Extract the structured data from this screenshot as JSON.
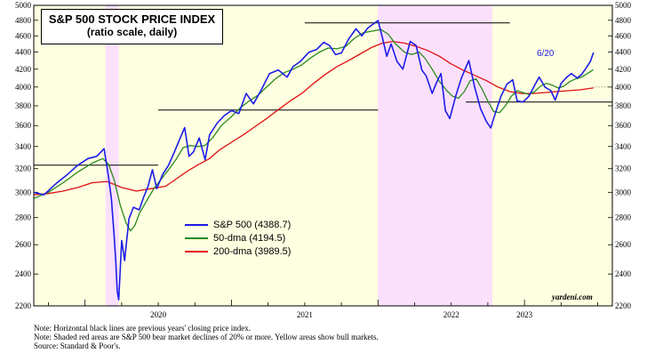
{
  "chart_data": {
    "type": "line",
    "title": "S&P 500 STOCK PRICE INDEX",
    "subtitle": "(ratio scale, daily)",
    "y_scale": "log",
    "ylim": [
      2200,
      5000
    ],
    "y_ticks": [
      2200,
      2400,
      2600,
      2800,
      3000,
      3200,
      3400,
      3600,
      3800,
      4000,
      4200,
      4400,
      4600,
      4800,
      5000
    ],
    "x_range": [
      2019.65,
      2023.6
    ],
    "x_tick_labels": [
      "2020",
      "2021",
      "2022",
      "2023"
    ],
    "x_tick_positions": [
      2020.0,
      2021.0,
      2022.0,
      2023.0
    ],
    "bear_markets": [
      [
        2020.14,
        2020.23
      ],
      [
        2022.0,
        2022.78
      ]
    ],
    "bull_markets": [
      [
        2019.65,
        2020.14
      ],
      [
        2020.23,
        2022.0
      ],
      [
        2022.78,
        2023.6
      ]
    ],
    "prior_year_closes": [
      {
        "value": 3231,
        "x_start": 2019.65,
        "x_end": 2020.5
      },
      {
        "value": 3756,
        "x_start": 2020.5,
        "x_end": 2022.0
      },
      {
        "value": 4766,
        "x_start": 2021.5,
        "x_end": 2022.9
      },
      {
        "value": 3839,
        "x_start": 2022.6,
        "x_end": 2023.6
      }
    ],
    "end_label": "6/20",
    "legend": [
      {
        "name": "S&P 500 (4388.7)",
        "color": "#1c1ce8"
      },
      {
        "name": "50-dma (4194.5)",
        "color": "#2a8a1e"
      },
      {
        "name": "200-dma (3989.5)",
        "color": "#e01010"
      }
    ],
    "reference_level": 4000,
    "series": [
      {
        "name": "S&P 500",
        "color": "#1c1ce8",
        "points": [
          [
            2019.65,
            3000
          ],
          [
            2019.72,
            2980
          ],
          [
            2019.8,
            3070
          ],
          [
            2019.88,
            3150
          ],
          [
            2019.95,
            3230
          ],
          [
            2020.02,
            3290
          ],
          [
            2020.08,
            3310
          ],
          [
            2020.13,
            3380
          ],
          [
            2020.16,
            3130
          ],
          [
            2020.18,
            2950
          ],
          [
            2020.2,
            2650
          ],
          [
            2020.21,
            2480
          ],
          [
            2020.22,
            2290
          ],
          [
            2020.23,
            2237
          ],
          [
            2020.25,
            2630
          ],
          [
            2020.27,
            2490
          ],
          [
            2020.3,
            2790
          ],
          [
            2020.33,
            2880
          ],
          [
            2020.37,
            2860
          ],
          [
            2020.4,
            2960
          ],
          [
            2020.43,
            3050
          ],
          [
            2020.46,
            3190
          ],
          [
            2020.49,
            3030
          ],
          [
            2020.53,
            3150
          ],
          [
            2020.57,
            3230
          ],
          [
            2020.61,
            3350
          ],
          [
            2020.65,
            3480
          ],
          [
            2020.68,
            3580
          ],
          [
            2020.71,
            3310
          ],
          [
            2020.74,
            3350
          ],
          [
            2020.78,
            3480
          ],
          [
            2020.82,
            3280
          ],
          [
            2020.85,
            3510
          ],
          [
            2020.9,
            3620
          ],
          [
            2020.95,
            3700
          ],
          [
            2021.0,
            3750
          ],
          [
            2021.05,
            3720
          ],
          [
            2021.1,
            3930
          ],
          [
            2021.15,
            3820
          ],
          [
            2021.2,
            3960
          ],
          [
            2021.26,
            4150
          ],
          [
            2021.32,
            4190
          ],
          [
            2021.38,
            4110
          ],
          [
            2021.42,
            4230
          ],
          [
            2021.47,
            4290
          ],
          [
            2021.53,
            4400
          ],
          [
            2021.58,
            4430
          ],
          [
            2021.63,
            4520
          ],
          [
            2021.67,
            4480
          ],
          [
            2021.71,
            4370
          ],
          [
            2021.75,
            4390
          ],
          [
            2021.8,
            4560
          ],
          [
            2021.85,
            4690
          ],
          [
            2021.89,
            4600
          ],
          [
            2021.93,
            4700
          ],
          [
            2022.0,
            4796
          ],
          [
            2022.03,
            4580
          ],
          [
            2022.06,
            4350
          ],
          [
            2022.09,
            4500
          ],
          [
            2022.13,
            4290
          ],
          [
            2022.17,
            4200
          ],
          [
            2022.22,
            4530
          ],
          [
            2022.26,
            4480
          ],
          [
            2022.3,
            4190
          ],
          [
            2022.33,
            4120
          ],
          [
            2022.37,
            3930
          ],
          [
            2022.4,
            4050
          ],
          [
            2022.43,
            4150
          ],
          [
            2022.46,
            3750
          ],
          [
            2022.49,
            3670
          ],
          [
            2022.53,
            3900
          ],
          [
            2022.57,
            4100
          ],
          [
            2022.62,
            4300
          ],
          [
            2022.66,
            4000
          ],
          [
            2022.7,
            3770
          ],
          [
            2022.74,
            3640
          ],
          [
            2022.77,
            3577
          ],
          [
            2022.8,
            3720
          ],
          [
            2022.84,
            3900
          ],
          [
            2022.88,
            4030
          ],
          [
            2022.92,
            4080
          ],
          [
            2022.95,
            3850
          ],
          [
            2022.99,
            3840
          ],
          [
            2023.03,
            3900
          ],
          [
            2023.07,
            4020
          ],
          [
            2023.1,
            4110
          ],
          [
            2023.14,
            4000
          ],
          [
            2023.18,
            3960
          ],
          [
            2023.21,
            3860
          ],
          [
            2023.25,
            4040
          ],
          [
            2023.29,
            4110
          ],
          [
            2023.32,
            4150
          ],
          [
            2023.36,
            4100
          ],
          [
            2023.39,
            4140
          ],
          [
            2023.42,
            4210
          ],
          [
            2023.45,
            4290
          ],
          [
            2023.47,
            4390
          ],
          [
            2023.469,
            4388.7
          ]
        ]
      },
      {
        "name": "50-dma",
        "color": "#2a8a1e",
        "points": [
          [
            2019.65,
            2950
          ],
          [
            2019.75,
            3000
          ],
          [
            2019.85,
            3080
          ],
          [
            2019.95,
            3170
          ],
          [
            2020.05,
            3250
          ],
          [
            2020.12,
            3290
          ],
          [
            2020.16,
            3240
          ],
          [
            2020.2,
            3100
          ],
          [
            2020.24,
            2900
          ],
          [
            2020.28,
            2760
          ],
          [
            2020.31,
            2700
          ],
          [
            2020.34,
            2740
          ],
          [
            2020.37,
            2830
          ],
          [
            2020.42,
            2930
          ],
          [
            2020.47,
            3030
          ],
          [
            2020.52,
            3110
          ],
          [
            2020.57,
            3190
          ],
          [
            2020.62,
            3280
          ],
          [
            2020.67,
            3390
          ],
          [
            2020.72,
            3410
          ],
          [
            2020.77,
            3400
          ],
          [
            2020.82,
            3410
          ],
          [
            2020.87,
            3480
          ],
          [
            2020.93,
            3600
          ],
          [
            2021.0,
            3690
          ],
          [
            2021.06,
            3780
          ],
          [
            2021.12,
            3850
          ],
          [
            2021.18,
            3910
          ],
          [
            2021.24,
            4000
          ],
          [
            2021.3,
            4090
          ],
          [
            2021.36,
            4160
          ],
          [
            2021.42,
            4200
          ],
          [
            2021.48,
            4250
          ],
          [
            2021.54,
            4330
          ],
          [
            2021.6,
            4400
          ],
          [
            2021.66,
            4450
          ],
          [
            2021.72,
            4440
          ],
          [
            2021.78,
            4470
          ],
          [
            2021.84,
            4570
          ],
          [
            2021.9,
            4640
          ],
          [
            2021.96,
            4660
          ],
          [
            2022.02,
            4680
          ],
          [
            2022.07,
            4620
          ],
          [
            2022.12,
            4500
          ],
          [
            2022.18,
            4400
          ],
          [
            2022.23,
            4370
          ],
          [
            2022.28,
            4400
          ],
          [
            2022.32,
            4330
          ],
          [
            2022.37,
            4200
          ],
          [
            2022.42,
            4060
          ],
          [
            2022.47,
            3960
          ],
          [
            2022.51,
            3900
          ],
          [
            2022.55,
            3880
          ],
          [
            2022.59,
            3950
          ],
          [
            2022.63,
            4070
          ],
          [
            2022.67,
            4090
          ],
          [
            2022.71,
            3980
          ],
          [
            2022.75,
            3850
          ],
          [
            2022.79,
            3740
          ],
          [
            2022.83,
            3730
          ],
          [
            2022.87,
            3800
          ],
          [
            2022.91,
            3900
          ],
          [
            2022.95,
            3960
          ],
          [
            2022.99,
            3940
          ],
          [
            2023.03,
            3920
          ],
          [
            2023.07,
            3950
          ],
          [
            2023.11,
            4010
          ],
          [
            2023.15,
            4040
          ],
          [
            2023.19,
            4020
          ],
          [
            2023.23,
            3990
          ],
          [
            2023.27,
            4010
          ],
          [
            2023.31,
            4060
          ],
          [
            2023.35,
            4090
          ],
          [
            2023.39,
            4110
          ],
          [
            2023.43,
            4150
          ],
          [
            2023.47,
            4195
          ]
        ]
      },
      {
        "name": "200-dma",
        "color": "#e01010",
        "points": [
          [
            2019.65,
            2980
          ],
          [
            2019.75,
            2990
          ],
          [
            2019.85,
            3010
          ],
          [
            2019.95,
            3040
          ],
          [
            2020.05,
            3080
          ],
          [
            2020.15,
            3090
          ],
          [
            2020.25,
            3040
          ],
          [
            2020.35,
            3010
          ],
          [
            2020.45,
            3030
          ],
          [
            2020.55,
            3050
          ],
          [
            2020.62,
            3110
          ],
          [
            2020.7,
            3180
          ],
          [
            2020.78,
            3240
          ],
          [
            2020.85,
            3290
          ],
          [
            2020.92,
            3370
          ],
          [
            2021.0,
            3440
          ],
          [
            2021.08,
            3510
          ],
          [
            2021.16,
            3590
          ],
          [
            2021.24,
            3670
          ],
          [
            2021.32,
            3760
          ],
          [
            2021.4,
            3850
          ],
          [
            2021.48,
            3930
          ],
          [
            2021.56,
            4040
          ],
          [
            2021.64,
            4140
          ],
          [
            2021.72,
            4230
          ],
          [
            2021.8,
            4300
          ],
          [
            2021.88,
            4380
          ],
          [
            2021.96,
            4460
          ],
          [
            2022.03,
            4510
          ],
          [
            2022.1,
            4530
          ],
          [
            2022.18,
            4510
          ],
          [
            2022.26,
            4470
          ],
          [
            2022.34,
            4420
          ],
          [
            2022.42,
            4350
          ],
          [
            2022.5,
            4260
          ],
          [
            2022.58,
            4190
          ],
          [
            2022.66,
            4130
          ],
          [
            2022.74,
            4070
          ],
          [
            2022.82,
            4000
          ],
          [
            2022.9,
            3950
          ],
          [
            2022.98,
            3930
          ],
          [
            2023.06,
            3930
          ],
          [
            2023.14,
            3940
          ],
          [
            2023.22,
            3950
          ],
          [
            2023.3,
            3960
          ],
          [
            2023.38,
            3970
          ],
          [
            2023.47,
            3990
          ]
        ]
      }
    ]
  },
  "notes": [
    "Note: Horizontal black lines are previous years' closing price index.",
    "Note: Shaded red areas are S&P 500 bear market declines of 20% or more. Yellow areas show bull markets.",
    "Source: Standard & Poor's."
  ],
  "credit": "yardeni.com",
  "colors": {
    "bull": "#fefee0",
    "bear": "#fbe0fb",
    "sp500": "#1c1ce8",
    "dma50": "#2a8a1e",
    "dma200": "#e01010"
  }
}
